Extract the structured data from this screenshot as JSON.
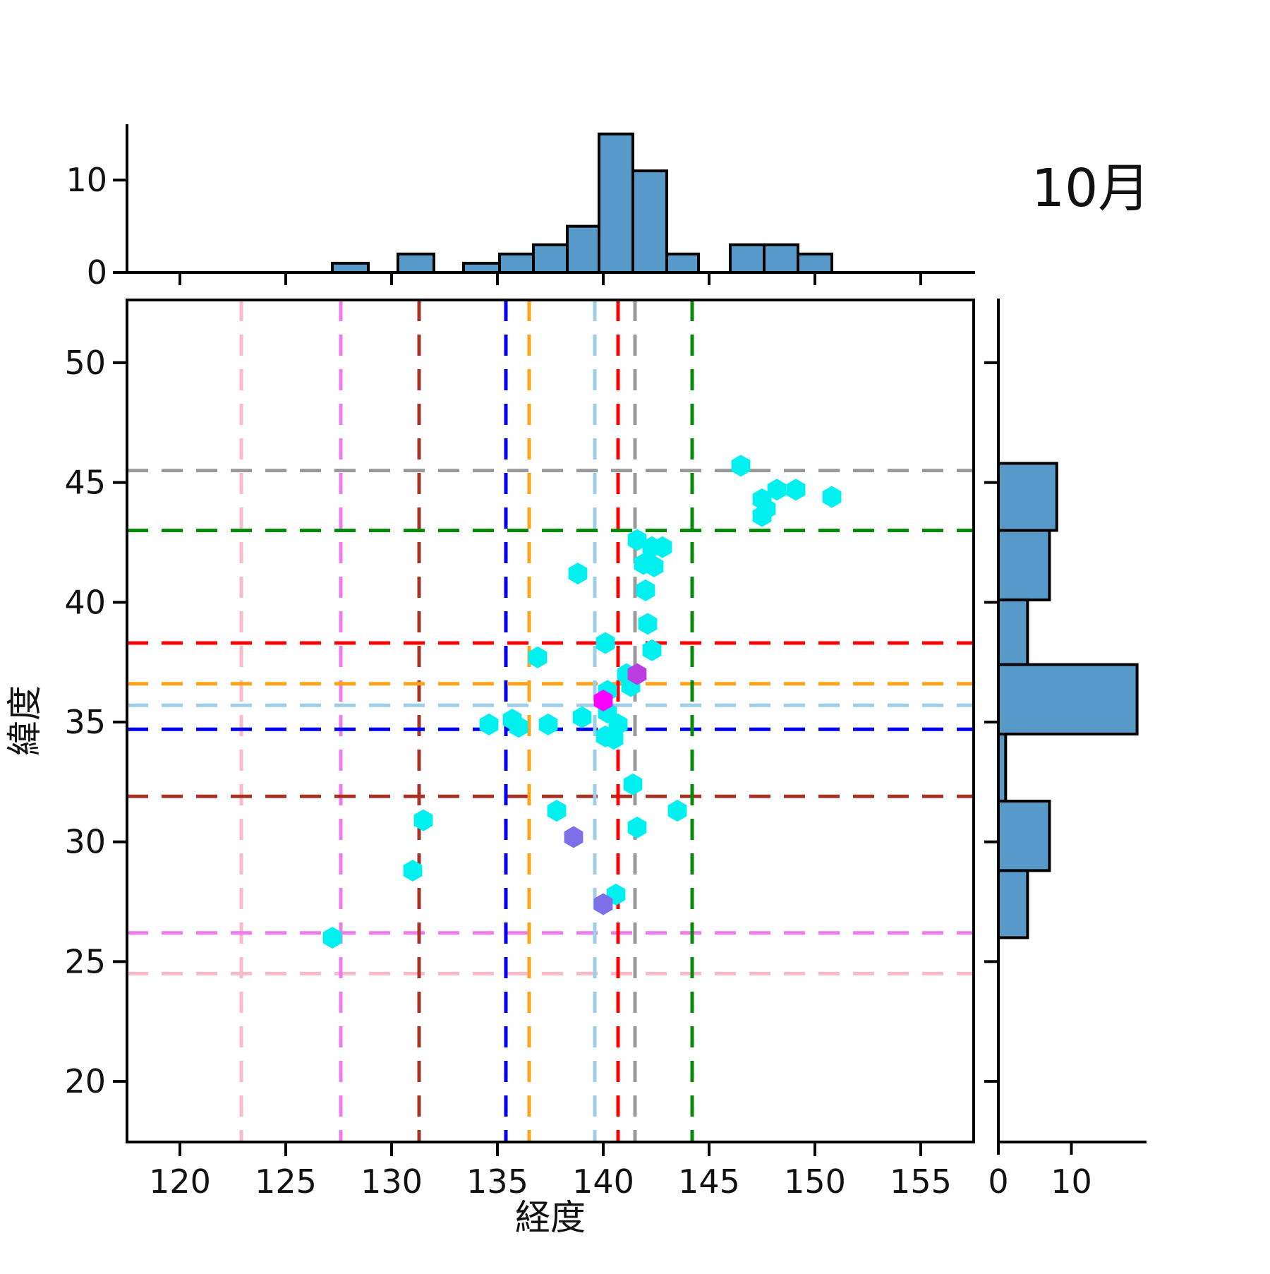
{
  "title": "10月",
  "colors": {
    "histogram_fill": "#5799C8",
    "histogram_edge": "#000000",
    "axis": "#000000",
    "text": "#111111",
    "cyan_marker": "#00EFEF",
    "purple_marker": "#7D6FE8",
    "orchid_marker": "#BB3FE0",
    "magenta_marker": "#FF00FF"
  },
  "chart_data": [
    {
      "type": "bar",
      "role": "top-marginal-histogram",
      "orientation": "vertical",
      "ylim": [
        0,
        15.9
      ],
      "yticks": [
        0,
        10
      ],
      "bins": [
        {
          "x0": 127.2,
          "x1": 128.9,
          "count": 1
        },
        {
          "x0": 130.3,
          "x1": 132.0,
          "count": 2
        },
        {
          "x0": 133.4,
          "x1": 135.1,
          "count": 1
        },
        {
          "x0": 135.1,
          "x1": 136.7,
          "count": 2
        },
        {
          "x0": 136.7,
          "x1": 138.3,
          "count": 3
        },
        {
          "x0": 138.3,
          "x1": 139.8,
          "count": 5
        },
        {
          "x0": 139.8,
          "x1": 141.4,
          "count": 15
        },
        {
          "x0": 141.4,
          "x1": 143.0,
          "count": 11
        },
        {
          "x0": 143.0,
          "x1": 144.5,
          "count": 2
        },
        {
          "x0": 146.0,
          "x1": 147.6,
          "count": 3
        },
        {
          "x0": 147.6,
          "x1": 149.2,
          "count": 3
        },
        {
          "x0": 149.2,
          "x1": 150.8,
          "count": 2
        }
      ]
    },
    {
      "type": "scatter",
      "role": "main-scatter",
      "xlabel": "経度",
      "ylabel": "緯度",
      "xlim": [
        117.5,
        157.5
      ],
      "ylim": [
        17.47,
        52.62
      ],
      "xticks": [
        120,
        125,
        130,
        135,
        140,
        145,
        150,
        155
      ],
      "yticks": [
        20,
        25,
        30,
        35,
        40,
        45,
        50
      ],
      "series": [
        {
          "name": "cyan-hexagons",
          "color": "#00EFEF",
          "marker": "hexagon",
          "points": [
            [
              146.5,
              45.7
            ],
            [
              147.5,
              44.3
            ],
            [
              147.7,
              43.9
            ],
            [
              147.5,
              43.6
            ],
            [
              148.2,
              44.7
            ],
            [
              149.1,
              44.7
            ],
            [
              150.8,
              44.4
            ],
            [
              141.6,
              42.6
            ],
            [
              142.3,
              42.3
            ],
            [
              142.8,
              42.3
            ],
            [
              141.9,
              41.6
            ],
            [
              142.4,
              41.5
            ],
            [
              138.8,
              41.2
            ],
            [
              142.0,
              40.5
            ],
            [
              142.1,
              39.1
            ],
            [
              140.1,
              38.3
            ],
            [
              142.3,
              38.0
            ],
            [
              136.9,
              37.7
            ],
            [
              141.1,
              37.0
            ],
            [
              141.3,
              36.5
            ],
            [
              140.2,
              36.3
            ],
            [
              140.2,
              35.4
            ],
            [
              139.0,
              35.2
            ],
            [
              135.7,
              35.1
            ],
            [
              136.0,
              34.8
            ],
            [
              134.6,
              34.9
            ],
            [
              137.4,
              34.9
            ],
            [
              140.7,
              34.9
            ],
            [
              140.1,
              34.4
            ],
            [
              140.5,
              34.3
            ],
            [
              131.5,
              30.9
            ],
            [
              131.0,
              28.8
            ],
            [
              127.2,
              26.0
            ],
            [
              137.8,
              31.3
            ],
            [
              141.4,
              32.4
            ],
            [
              143.5,
              31.3
            ],
            [
              141.6,
              30.6
            ],
            [
              140.6,
              27.8
            ]
          ]
        },
        {
          "name": "purple-hexagons",
          "color": "#7D6FE8",
          "marker": "hexagon",
          "points": [
            [
              138.6,
              30.2
            ],
            [
              140.0,
              27.4
            ]
          ]
        },
        {
          "name": "orchid-hexagon",
          "color": "#BB3FE0",
          "marker": "hexagon",
          "points": [
            [
              141.6,
              37.0
            ]
          ]
        },
        {
          "name": "magenta-hexagon",
          "color": "#FF00FF",
          "marker": "hexagon",
          "points": [
            [
              140.0,
              35.9
            ]
          ]
        }
      ],
      "crosshairs": [
        {
          "name": "pink",
          "color": "#FABBC8",
          "x": 122.9,
          "y": 24.5
        },
        {
          "name": "violet",
          "color": "#EE7BEE",
          "x": 127.6,
          "y": 26.2
        },
        {
          "name": "dark-red",
          "color": "#A93226",
          "x": 131.3,
          "y": 31.9
        },
        {
          "name": "blue",
          "color": "#0000EE",
          "x": 135.4,
          "y": 34.7
        },
        {
          "name": "orange",
          "color": "#FFA319",
          "x": 136.5,
          "y": 36.6
        },
        {
          "name": "light-blue",
          "color": "#9FCEE8",
          "x": 139.6,
          "y": 35.7
        },
        {
          "name": "red",
          "color": "#FF0000",
          "x": 140.7,
          "y": 38.3
        },
        {
          "name": "gray",
          "color": "#9A9A9A",
          "x": 141.5,
          "y": 45.5
        },
        {
          "name": "green",
          "color": "#078A07",
          "x": 144.2,
          "y": 43.0
        }
      ]
    },
    {
      "type": "bar",
      "role": "right-marginal-histogram",
      "orientation": "horizontal",
      "xlim": [
        0,
        20.1
      ],
      "xticks": [
        0,
        10
      ],
      "bins": [
        {
          "y0": 43.0,
          "y1": 45.8,
          "count": 8
        },
        {
          "y0": 40.1,
          "y1": 43.0,
          "count": 7
        },
        {
          "y0": 37.4,
          "y1": 40.1,
          "count": 4
        },
        {
          "y0": 34.5,
          "y1": 37.4,
          "count": 19
        },
        {
          "y0": 31.7,
          "y1": 34.5,
          "count": 1
        },
        {
          "y0": 28.8,
          "y1": 31.7,
          "count": 7
        },
        {
          "y0": 26.0,
          "y1": 28.8,
          "count": 4
        }
      ]
    }
  ]
}
